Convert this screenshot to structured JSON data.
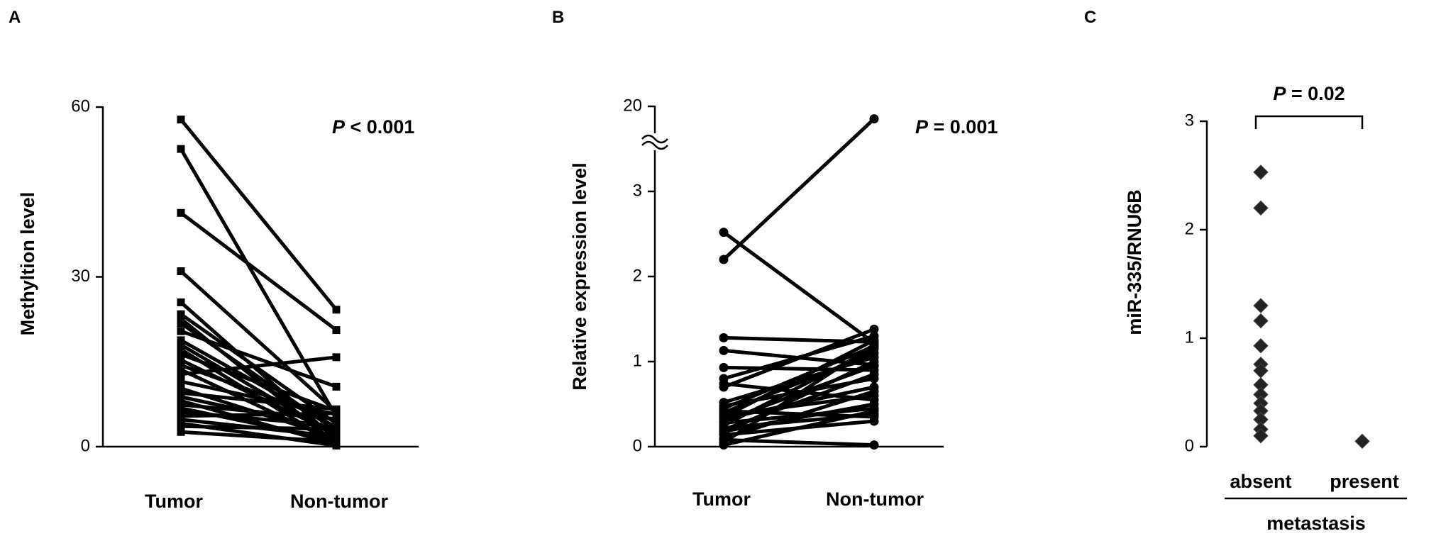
{
  "chart_data": [
    {
      "panel_label": "A",
      "type": "line",
      "ylabel": "Methyltion level",
      "categories": [
        "Tumor",
        "Non-tumor"
      ],
      "yticks": [
        "0",
        "30",
        "60"
      ],
      "ylim": [
        0,
        60
      ],
      "annotation": {
        "p_symbol": "P",
        "p_text": " < 0.001"
      },
      "pairs": [
        [
          57.8,
          24.2
        ],
        [
          52.6,
          5.3
        ],
        [
          41.3,
          20.6
        ],
        [
          31.0,
          6.2
        ],
        [
          25.5,
          1.2
        ],
        [
          23.4,
          4.1
        ],
        [
          22.6,
          0.5
        ],
        [
          21.8,
          2.8
        ],
        [
          20.4,
          10.6
        ],
        [
          18.8,
          3.4
        ],
        [
          18.0,
          1.9
        ],
        [
          17.2,
          0.3
        ],
        [
          16.3,
          6.3
        ],
        [
          15.3,
          2.2
        ],
        [
          14.4,
          4.5
        ],
        [
          13.6,
          0.8
        ],
        [
          12.8,
          15.8
        ],
        [
          11.5,
          5.7
        ],
        [
          10.3,
          1.6
        ],
        [
          9.5,
          6.6
        ],
        [
          8.8,
          2.9
        ],
        [
          8.1,
          0.4
        ],
        [
          7.4,
          4.9
        ],
        [
          6.8,
          1.1
        ],
        [
          6.1,
          3.7
        ],
        [
          5.4,
          5.9
        ],
        [
          4.8,
          1.8
        ],
        [
          4.1,
          0.2
        ],
        [
          3.6,
          3.1
        ],
        [
          2.6,
          0.9
        ]
      ]
    },
    {
      "panel_label": "B",
      "type": "line",
      "ylabel": "Relative  expression level",
      "categories": [
        "Tumor",
        "Non-tumor"
      ],
      "yticks": [
        "0",
        "1",
        "2",
        "3",
        "20"
      ],
      "ylim": [
        0,
        20
      ],
      "axis_break": [
        3.5,
        19.5
      ],
      "annotation": {
        "p_symbol": "P",
        "p_text": " = 0.001"
      },
      "pairs": [
        [
          2.52,
          1.22
        ],
        [
          2.2,
          17.5
        ],
        [
          1.28,
          1.23
        ],
        [
          1.13,
          0.96
        ],
        [
          0.93,
          0.9
        ],
        [
          0.8,
          1.3
        ],
        [
          0.74,
          0.55
        ],
        [
          0.7,
          1.38
        ],
        [
          0.52,
          1.05
        ],
        [
          0.48,
          0.8
        ],
        [
          0.45,
          1.18
        ],
        [
          0.42,
          0.35
        ],
        [
          0.4,
          1.1
        ],
        [
          0.37,
          0.6
        ],
        [
          0.35,
          1.25
        ],
        [
          0.33,
          0.7
        ],
        [
          0.3,
          0.95
        ],
        [
          0.28,
          0.45
        ],
        [
          0.25,
          1.15
        ],
        [
          0.22,
          0.38
        ],
        [
          0.2,
          0.85
        ],
        [
          0.18,
          0.5
        ],
        [
          0.16,
          1.0
        ],
        [
          0.14,
          0.3
        ],
        [
          0.1,
          0.65
        ],
        [
          0.08,
          0.02
        ],
        [
          0.05,
          1.2
        ],
        [
          0.02,
          0.42
        ]
      ]
    },
    {
      "panel_label": "C",
      "type": "scatter",
      "ylabel": "miR-335/RNU6B",
      "categories": [
        "absent",
        "present"
      ],
      "group_label": "metastasis",
      "yticks": [
        "0",
        "1",
        "2",
        "3"
      ],
      "ylim": [
        0,
        3
      ],
      "annotation": {
        "p_symbol": "P",
        "p_text": " = 0.02"
      },
      "groups": [
        {
          "name": "absent",
          "values": [
            2.53,
            2.2,
            1.3,
            1.16,
            0.93,
            0.76,
            0.7,
            0.57,
            0.48,
            0.4,
            0.33,
            0.25,
            0.16,
            0.1
          ]
        },
        {
          "name": "present",
          "values": [
            0.05
          ]
        }
      ]
    }
  ]
}
